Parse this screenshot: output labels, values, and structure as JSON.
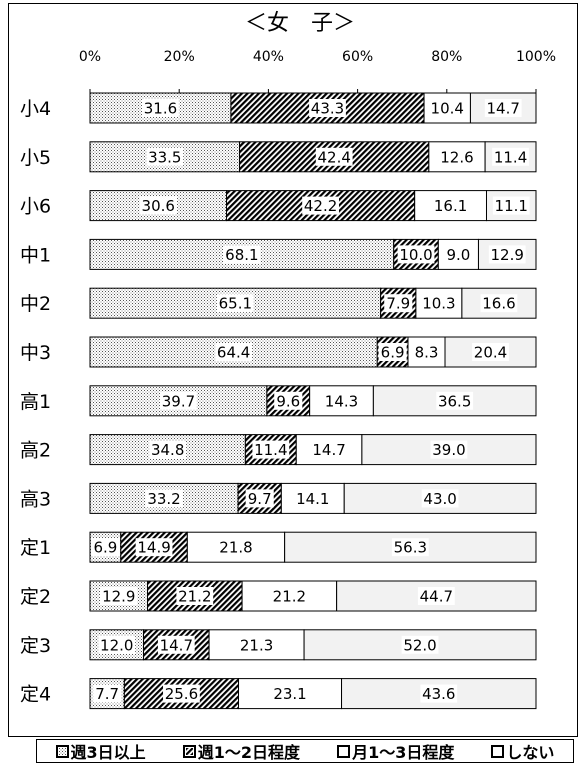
{
  "chart_data": {
    "type": "bar",
    "orientation": "horizontal",
    "stacked": true,
    "title": "＜女　子＞",
    "xlim": [
      0,
      100
    ],
    "x_ticks": [
      "0%",
      "20%",
      "40%",
      "60%",
      "80%",
      "100%"
    ],
    "categories": [
      "小4",
      "小5",
      "小6",
      "中1",
      "中2",
      "中3",
      "高1",
      "高2",
      "高3",
      "定1",
      "定2",
      "定3",
      "定4"
    ],
    "series": [
      {
        "name": "週3日以上",
        "pattern": "dots",
        "color": "#d0d0d0",
        "values": [
          31.6,
          33.5,
          30.6,
          68.1,
          65.1,
          64.4,
          39.7,
          34.8,
          33.2,
          6.9,
          12.9,
          12.0,
          7.7
        ],
        "labels": [
          "31.6",
          "33.5",
          "30.6",
          "68.1",
          "65.1",
          "64.4",
          "39.7",
          "34.8",
          "33.2",
          "6.9",
          "12.9",
          "12.0",
          "7.7"
        ]
      },
      {
        "name": "週1～2日程度",
        "pattern": "diagonal",
        "color": "#000000",
        "values": [
          43.3,
          42.4,
          42.2,
          10.0,
          7.9,
          6.9,
          9.6,
          11.4,
          9.7,
          14.9,
          21.2,
          14.7,
          25.6
        ],
        "labels": [
          "43.3",
          "42.4",
          "42.2",
          "10.0",
          "7.9",
          "6.9",
          "9.6",
          "11.4",
          "9.7",
          "14.9",
          "21.2",
          "14.7",
          "25.6"
        ]
      },
      {
        "name": "月1～3日程度",
        "pattern": "white",
        "color": "#ffffff",
        "values": [
          10.4,
          12.6,
          16.1,
          9.0,
          10.3,
          8.3,
          14.3,
          14.7,
          14.1,
          21.8,
          21.2,
          21.3,
          23.1
        ],
        "labels": [
          "10.4",
          "12.6",
          "16.1",
          "9.0",
          "10.3",
          "8.3",
          "14.3",
          "14.7",
          "14.1",
          "21.8",
          "21.2",
          "21.3",
          "23.1"
        ]
      },
      {
        "name": "しない",
        "pattern": "light",
        "color": "#f2f2f2",
        "values": [
          14.7,
          11.4,
          11.1,
          12.9,
          16.6,
          20.4,
          36.5,
          39.0,
          43.0,
          56.3,
          44.7,
          52.0,
          43.6
        ],
        "labels": [
          "14.7",
          "11.4",
          "11.1",
          "12.9",
          "16.6",
          "20.4",
          "36.5",
          "39.0",
          "43.0",
          "56.3",
          "44.7",
          "52.0",
          "43.6"
        ]
      }
    ],
    "legend_position": "bottom",
    "grid": false
  },
  "legend": {
    "items": [
      {
        "label": "週3日以上",
        "icon": "dotted-square-icon"
      },
      {
        "label": "週1～2日程度",
        "icon": "hatched-square-icon"
      },
      {
        "label": "月1～3日程度",
        "icon": "empty-square-icon"
      },
      {
        "label": "しない",
        "icon": "empty-square-icon"
      }
    ]
  }
}
